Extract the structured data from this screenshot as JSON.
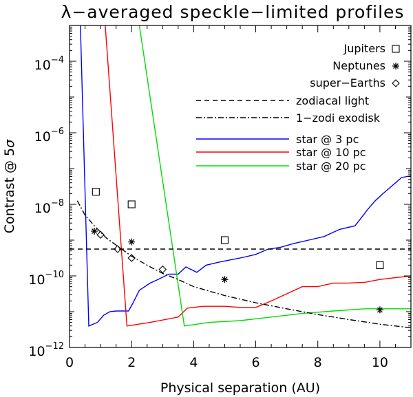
{
  "chart_data": {
    "type": "line",
    "title": "λ−averaged speckle−limited profiles",
    "xlabel": "Physical separation (AU)",
    "ylabel_main": "Contrast @ 5",
    "ylabel_symbol": "σ",
    "x_range": [
      0,
      11
    ],
    "y_range_log10": [
      -12,
      -3
    ],
    "x_ticks": [
      {
        "value": 0,
        "label": "0"
      },
      {
        "value": 2,
        "label": "2"
      },
      {
        "value": 4,
        "label": "4"
      },
      {
        "value": 6,
        "label": "6"
      },
      {
        "value": 8,
        "label": "8"
      },
      {
        "value": 10,
        "label": "10"
      }
    ],
    "y_ticks": [
      {
        "exp": -4,
        "base": "10",
        "sup": "−4"
      },
      {
        "exp": -6,
        "base": "10",
        "sup": "−6"
      },
      {
        "exp": -8,
        "base": "10",
        "sup": "−8"
      },
      {
        "exp": -10,
        "base": "10",
        "sup": "−10"
      },
      {
        "exp": -12,
        "base": "10",
        "sup": "−12"
      }
    ],
    "series": [
      {
        "name": "star @ 3 pc",
        "color": "#0000ff",
        "style": "solid",
        "points": [
          [
            0.35,
            -3.0
          ],
          [
            0.62,
            -11.4
          ],
          [
            0.9,
            -11.3
          ],
          [
            1.1,
            -11.1
          ],
          [
            1.3,
            -11.0
          ],
          [
            1.5,
            -10.98
          ],
          [
            1.9,
            -10.98
          ],
          [
            2.05,
            -10.75
          ],
          [
            2.25,
            -10.4
          ],
          [
            2.6,
            -10.2
          ],
          [
            2.85,
            -10.1
          ],
          [
            3.2,
            -9.95
          ],
          [
            3.5,
            -9.95
          ],
          [
            3.75,
            -9.75
          ],
          [
            4.1,
            -9.9
          ],
          [
            4.4,
            -9.7
          ],
          [
            4.8,
            -9.62
          ],
          [
            5.2,
            -9.55
          ],
          [
            5.6,
            -9.48
          ],
          [
            6.0,
            -9.4
          ],
          [
            6.4,
            -9.25
          ],
          [
            6.8,
            -9.2
          ],
          [
            7.2,
            -9.1
          ],
          [
            7.7,
            -9.0
          ],
          [
            8.2,
            -8.9
          ],
          [
            8.7,
            -8.7
          ],
          [
            9.2,
            -8.6
          ],
          [
            9.6,
            -8.15
          ],
          [
            9.85,
            -7.9
          ],
          [
            10.1,
            -7.7
          ],
          [
            10.5,
            -7.4
          ],
          [
            10.7,
            -7.25
          ],
          [
            11.0,
            -7.2
          ]
        ]
      },
      {
        "name": "star @ 10 pc",
        "color": "#ff0000",
        "style": "solid",
        "points": [
          [
            1.15,
            -3.0
          ],
          [
            1.85,
            -11.4
          ],
          [
            2.6,
            -11.3
          ],
          [
            3.5,
            -11.15
          ],
          [
            3.8,
            -10.9
          ],
          [
            4.3,
            -10.85
          ],
          [
            5.0,
            -10.85
          ],
          [
            5.5,
            -10.88
          ],
          [
            6.0,
            -10.88
          ],
          [
            6.5,
            -10.7
          ],
          [
            7.0,
            -10.5
          ],
          [
            7.5,
            -10.3
          ],
          [
            8.0,
            -10.3
          ],
          [
            8.5,
            -10.2
          ],
          [
            9.0,
            -10.2
          ],
          [
            9.5,
            -10.18
          ],
          [
            10.0,
            -10.1
          ],
          [
            10.5,
            -10.05
          ],
          [
            11.0,
            -10.0
          ]
        ]
      },
      {
        "name": "star @ 20 pc",
        "color": "#00dd00",
        "style": "solid",
        "points": [
          [
            2.25,
            -3.0
          ],
          [
            3.7,
            -11.4
          ],
          [
            4.5,
            -11.3
          ],
          [
            5.5,
            -11.25
          ],
          [
            6.5,
            -11.15
          ],
          [
            7.5,
            -11.05
          ],
          [
            8.5,
            -10.98
          ],
          [
            9.5,
            -10.92
          ],
          [
            10.0,
            -10.92
          ],
          [
            11.0,
            -10.92
          ]
        ]
      },
      {
        "name": "zodiacal light",
        "color": "#000000",
        "style": "dashed",
        "points": [
          [
            0.0,
            -9.25
          ],
          [
            11.0,
            -9.25
          ]
        ]
      },
      {
        "name": "1-zodi exodisk",
        "color": "#000000",
        "style": "dashdot",
        "points": [
          [
            0.25,
            -7.9
          ],
          [
            0.5,
            -8.3
          ],
          [
            0.8,
            -8.6
          ],
          [
            1.2,
            -8.95
          ],
          [
            1.6,
            -9.2
          ],
          [
            2.0,
            -9.45
          ],
          [
            2.5,
            -9.7
          ],
          [
            3.0,
            -9.93
          ],
          [
            3.5,
            -10.1
          ],
          [
            4.0,
            -10.3
          ],
          [
            5.0,
            -10.55
          ],
          [
            6.0,
            -10.75
          ],
          [
            7.0,
            -10.92
          ],
          [
            8.0,
            -11.08
          ],
          [
            9.0,
            -11.22
          ],
          [
            10.0,
            -11.35
          ],
          [
            11.0,
            -11.45
          ]
        ]
      }
    ],
    "markers": [
      {
        "name": "Jupiters",
        "shape": "square",
        "points": [
          [
            0.85,
            -7.65
          ],
          [
            2.0,
            -8.0
          ],
          [
            5.0,
            -9.0
          ],
          [
            10.0,
            -9.7
          ]
        ]
      },
      {
        "name": "Neptunes",
        "shape": "asterisk",
        "points": [
          [
            0.8,
            -8.75
          ],
          [
            2.0,
            -9.05
          ],
          [
            5.0,
            -10.1
          ],
          [
            10.0,
            -10.95
          ]
        ]
      },
      {
        "name": "super-Earths",
        "shape": "diamond",
        "points": [
          [
            1.0,
            -8.85
          ],
          [
            1.55,
            -9.25
          ],
          [
            2.0,
            -9.5
          ],
          [
            3.0,
            -9.82
          ]
        ]
      }
    ],
    "legend_position": "top-right",
    "legend": {
      "markers": [
        {
          "label": "Jupiters",
          "shape": "square"
        },
        {
          "label": "Neptunes",
          "shape": "asterisk"
        },
        {
          "label": "super−Earths",
          "shape": "diamond"
        }
      ],
      "lines": [
        {
          "label": "zodiacal light",
          "style": "dashed",
          "color": "#000000"
        },
        {
          "label": "1−zodi exodisk",
          "style": "dashdot",
          "color": "#000000"
        },
        {
          "label": "star @ 3 pc",
          "style": "solid",
          "color": "#0000ff"
        },
        {
          "label": "star @ 10 pc",
          "style": "solid",
          "color": "#ff0000"
        },
        {
          "label": "star @ 20 pc",
          "style": "solid",
          "color": "#00dd00"
        }
      ]
    }
  }
}
